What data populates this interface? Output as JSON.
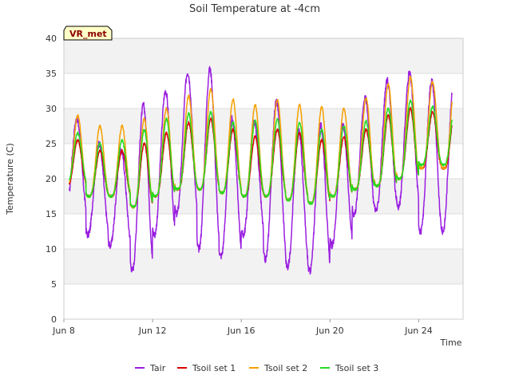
{
  "chart_data": {
    "type": "line",
    "title": "Soil Temperature at -4cm",
    "xlabel": "Time",
    "ylabel": "Temperature (C)",
    "badge": "VR_met",
    "ylim": [
      0,
      40
    ],
    "yticks": [
      0,
      5,
      10,
      15,
      20,
      25,
      30,
      35,
      40
    ],
    "xlim": [
      "2024-06-08",
      "2024-06-26"
    ],
    "xticks": [
      {
        "date": "2024-06-08",
        "label": "Jun 8"
      },
      {
        "date": "2024-06-12",
        "label": "Jun 12"
      },
      {
        "date": "2024-06-16",
        "label": "Jun 16"
      },
      {
        "date": "2024-06-20",
        "label": "Jun 20"
      },
      {
        "date": "2024-06-24",
        "label": "Jun 24"
      }
    ],
    "grid": true,
    "legend": "bottom",
    "series": [
      {
        "name": "Tair",
        "color": "#9a1ee0",
        "start": "2024-06-08 06:00",
        "end": "2024-06-25 12:00",
        "min": [
          15.0,
          12.0,
          10.5,
          7.0,
          12.0,
          15.0,
          10.0,
          9.0,
          12.0,
          8.5,
          7.5,
          6.8,
          10.5,
          15.0,
          15.5,
          16.0,
          12.5
        ],
        "max": [
          28.5,
          25.0,
          24.0,
          30.5,
          32.5,
          35.2,
          35.6,
          28.5,
          28.0,
          31.0,
          27.0,
          27.5,
          27.5,
          31.5,
          34.0,
          35.0,
          34.0
        ]
      },
      {
        "name": "Tsoil set 1",
        "color": "#dd0000",
        "start": "2024-06-08 06:00",
        "end": "2024-06-25 12:00",
        "min": [
          19.0,
          17.5,
          17.5,
          16.0,
          17.5,
          18.5,
          18.5,
          18.0,
          17.5,
          17.5,
          17.0,
          16.5,
          17.5,
          18.5,
          19.0,
          20.0,
          21.5
        ],
        "max": [
          25.5,
          24.0,
          24.0,
          25.0,
          26.5,
          28.0,
          28.5,
          27.0,
          26.0,
          27.0,
          26.5,
          25.5,
          26.0,
          27.0,
          29.0,
          30.0,
          29.5
        ]
      },
      {
        "name": "Tsoil set 2",
        "color": "#f5a000",
        "start": "2024-06-08 06:00",
        "end": "2024-06-25 12:00",
        "min": [
          19.0,
          17.5,
          17.5,
          16.0,
          17.5,
          18.5,
          18.5,
          18.0,
          17.5,
          17.5,
          17.0,
          16.5,
          17.5,
          18.5,
          19.0,
          20.0,
          21.5
        ],
        "max": [
          29.0,
          27.5,
          27.5,
          28.5,
          30.0,
          31.8,
          32.8,
          31.3,
          30.5,
          31.3,
          30.5,
          30.2,
          30.0,
          31.5,
          33.5,
          34.5,
          33.8
        ]
      },
      {
        "name": "Tsoil set 3",
        "color": "#22dd22",
        "start": "2024-06-08 06:00",
        "end": "2024-06-25 12:00",
        "min": [
          19.5,
          17.5,
          17.5,
          16.0,
          17.5,
          18.5,
          18.5,
          18.0,
          17.5,
          17.5,
          17.0,
          16.5,
          17.5,
          18.5,
          19.0,
          20.0,
          22.0
        ],
        "max": [
          26.5,
          25.0,
          25.5,
          27.0,
          28.5,
          29.3,
          29.5,
          28.0,
          28.3,
          28.5,
          28.0,
          27.0,
          27.5,
          28.2,
          30.0,
          31.2,
          30.3
        ]
      }
    ]
  }
}
